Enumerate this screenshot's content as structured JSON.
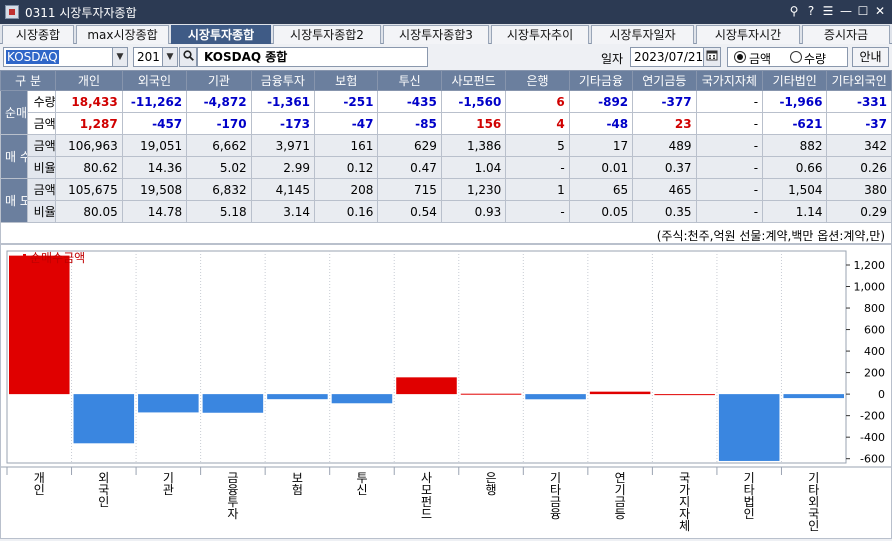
{
  "window": {
    "title": "0311 시장투자자종합"
  },
  "title_buttons": [
    "⚲",
    "?",
    "☰",
    "—",
    "☐",
    "✕"
  ],
  "tabs": [
    "시장종합",
    "max시장종합",
    "시장투자종합",
    "시장투자종합2",
    "시장투자종합3",
    "시장투자추이",
    "시장투자일자",
    "시장투자시간",
    "증시자금"
  ],
  "active_tab": 2,
  "toolbar": {
    "market": "KOSDAQ",
    "code": "201",
    "name": "KOSDAQ 종합",
    "date_label": "일자",
    "date": "2023/07/21",
    "radio_amount": "금액",
    "radio_qty": "수량",
    "guide": "안내"
  },
  "table": {
    "corner": "구 분",
    "columns": [
      "개인",
      "외국인",
      "기관",
      "금융투자",
      "보험",
      "투신",
      "사모펀드",
      "은행",
      "기타금융",
      "연기금등",
      "국가지자체",
      "기타법인",
      "기타외국인"
    ],
    "groups": [
      {
        "label": "순매수",
        "rows": [
          {
            "label": "수량",
            "values": [
              "18,433",
              "-11,262",
              "-4,872",
              "-1,361",
              "-251",
              "-435",
              "-1,560",
              "6",
              "-892",
              "-377",
              "-",
              "-1,966",
              "-331"
            ]
          },
          {
            "label": "금액",
            "values": [
              "1,287",
              "-457",
              "-170",
              "-173",
              "-47",
              "-85",
              "156",
              "4",
              "-48",
              "23",
              "-",
              "-621",
              "-37"
            ]
          }
        ]
      },
      {
        "label": "매 수",
        "rows": [
          {
            "label": "금액",
            "values": [
              "106,963",
              "19,051",
              "6,662",
              "3,971",
              "161",
              "629",
              "1,386",
              "5",
              "17",
              "489",
              "-",
              "882",
              "342"
            ]
          },
          {
            "label": "비율",
            "values": [
              "80.62",
              "14.36",
              "5.02",
              "2.99",
              "0.12",
              "0.47",
              "1.04",
              "-",
              "0.01",
              "0.37",
              "-",
              "0.66",
              "0.26"
            ]
          }
        ]
      },
      {
        "label": "매 도",
        "rows": [
          {
            "label": "금액",
            "values": [
              "105,675",
              "19,508",
              "6,832",
              "4,145",
              "208",
              "715",
              "1,230",
              "1",
              "65",
              "465",
              "-",
              "1,504",
              "380"
            ]
          },
          {
            "label": "비율",
            "values": [
              "80.05",
              "14.78",
              "5.18",
              "3.14",
              "0.16",
              "0.54",
              "0.93",
              "-",
              "0.05",
              "0.35",
              "-",
              "1.14",
              "0.29"
            ]
          }
        ]
      }
    ]
  },
  "unit_note": "(주식:천주,억원 선물:계약,백만 옵션:계약,만)",
  "colors": {
    "positive": "#e00000",
    "negative": "#3a86e0",
    "header": "#6b7f9e",
    "titlebar": "#2c3a53",
    "active_tab": "#3f5b86"
  },
  "chart_data": {
    "type": "bar",
    "legend": "순매수금액",
    "categories": [
      "개인",
      "외국인",
      "기관",
      "금융투자",
      "보험",
      "투신",
      "사모펀드",
      "은행",
      "기타금융",
      "연기금등",
      "국가지자체",
      "기타법인",
      "기타외국인"
    ],
    "values": [
      1287,
      -457,
      -170,
      -173,
      -47,
      -85,
      156,
      4,
      -48,
      23,
      0,
      -621,
      -37
    ],
    "yticks": [
      "1,200",
      "1,000",
      "800",
      "600",
      "400",
      "200",
      "0",
      "-200",
      "-400",
      "-600"
    ],
    "ylim": [
      -640,
      1330
    ],
    "grid": true
  }
}
